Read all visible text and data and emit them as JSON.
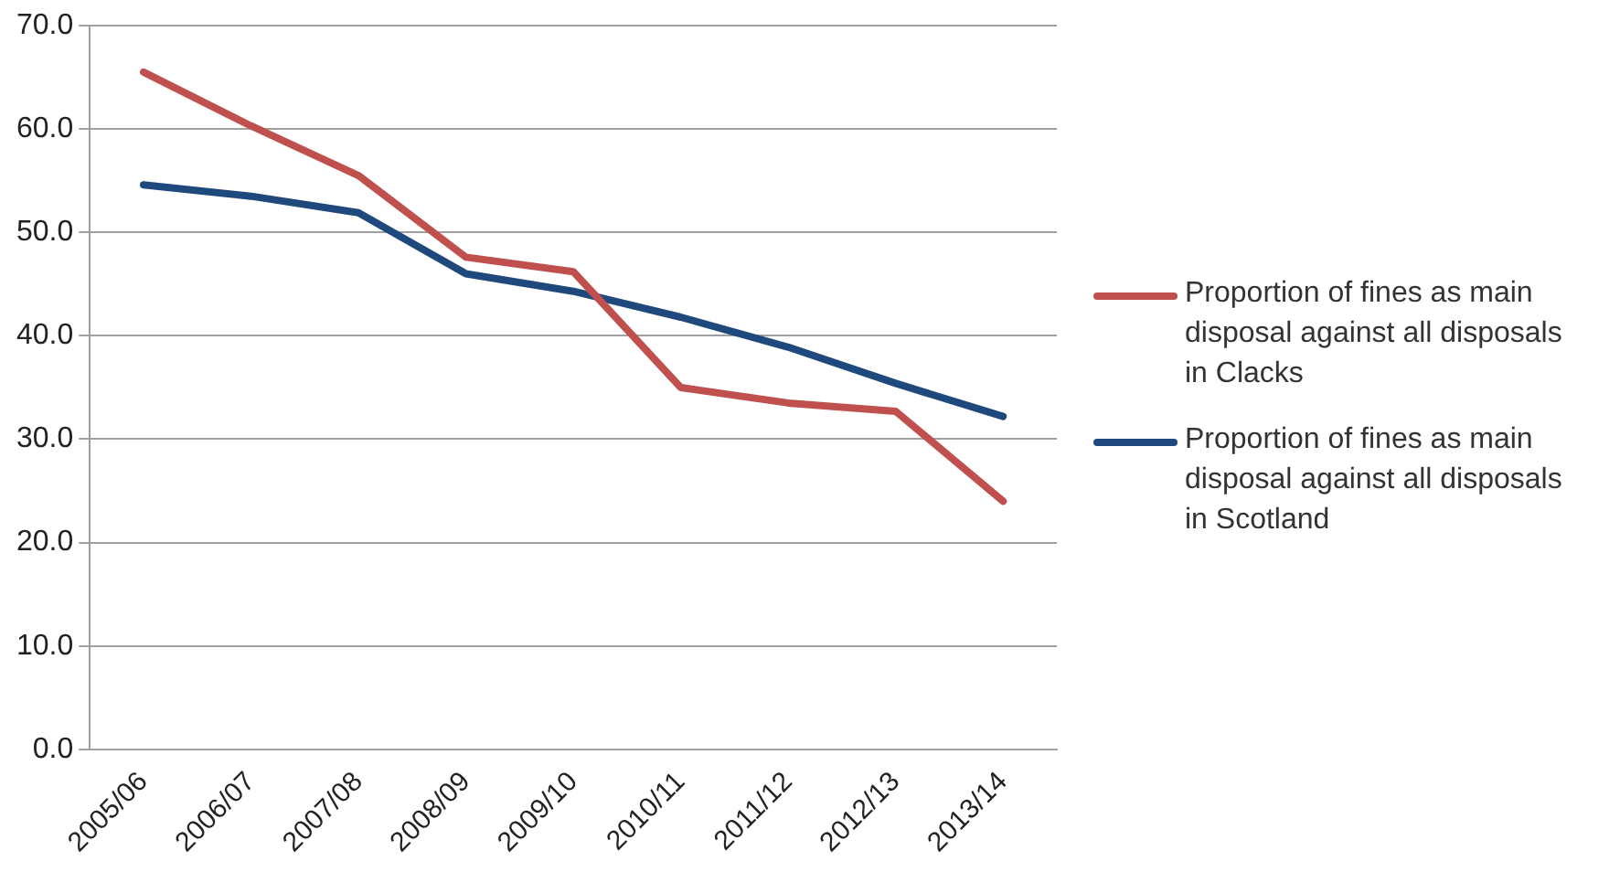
{
  "chart_data": {
    "type": "line",
    "categories": [
      "2005/06",
      "2006/07",
      "2007/08",
      "2008/09",
      "2009/10",
      "2010/11",
      "2011/12",
      "2012/13",
      "2013/14"
    ],
    "series": [
      {
        "name": "Proportion of fines as main disposal against all disposals in Clacks",
        "color": "#c0504d",
        "values": [
          65.5,
          60.3,
          55.5,
          47.6,
          46.2,
          35.0,
          33.5,
          32.7,
          24.0
        ]
      },
      {
        "name": "Proportion of fines as main disposal against all disposals in Scotland",
        "color": "#1f497d",
        "values": [
          54.6,
          53.5,
          51.9,
          46.0,
          44.3,
          41.8,
          38.9,
          35.4,
          32.2
        ]
      }
    ],
    "ylim": [
      0,
      70
    ],
    "yticks": [
      {
        "value": 0,
        "label": "0.0"
      },
      {
        "value": 10,
        "label": "10.0"
      },
      {
        "value": 20,
        "label": "20.0"
      },
      {
        "value": 30,
        "label": "30.0"
      },
      {
        "value": 40,
        "label": "40.0"
      },
      {
        "value": 50,
        "label": "50.0"
      },
      {
        "value": 60,
        "label": "60.0"
      },
      {
        "value": 70,
        "label": "70.0"
      }
    ],
    "grid": "y",
    "legend": "right",
    "marker": "none",
    "line_style": "solid"
  }
}
